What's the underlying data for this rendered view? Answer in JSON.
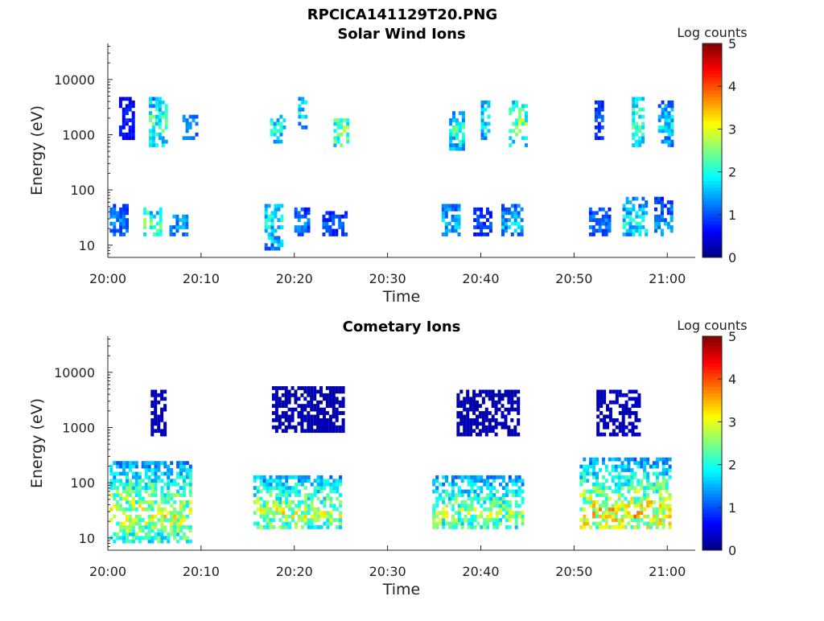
{
  "figure_title": "RPCICA141129T20.PNG",
  "chart_data": [
    {
      "type": "heatmap",
      "title": "Solar Wind Ions",
      "xlabel": "Time",
      "ylabel": "Energy (eV)",
      "x_tick_labels": [
        "20:00",
        "20:10",
        "20:20",
        "20:30",
        "20:40",
        "20:50",
        "21:00"
      ],
      "y_tick_labels": [
        "10",
        "100",
        "1000",
        "10000"
      ],
      "y_scale": "log",
      "ylim": [
        6,
        45000
      ],
      "xlim_minutes": [
        0,
        63
      ],
      "colorbar": {
        "label": "Log counts",
        "range": [
          0,
          5
        ],
        "tick_labels": [
          "0",
          "1",
          "2",
          "3",
          "4",
          "5"
        ],
        "colormap": "jet"
      },
      "clusters": [
        {
          "t_min": 0.2,
          "t_max": 2.2,
          "e_low": 15,
          "e_high": 55,
          "peak": 1.5
        },
        {
          "t_min": 1.2,
          "t_max": 2.6,
          "e_low": 800,
          "e_high": 4500,
          "peak": 0.9
        },
        {
          "t_min": 3.8,
          "t_max": 5.6,
          "e_low": 15,
          "e_high": 45,
          "peak": 2.6
        },
        {
          "t_min": 4.4,
          "t_max": 6.2,
          "e_low": 600,
          "e_high": 4500,
          "peak": 2.6
        },
        {
          "t_min": 6.6,
          "t_max": 8.6,
          "e_low": 15,
          "e_high": 35,
          "peak": 1.7
        },
        {
          "t_min": 8.0,
          "t_max": 9.4,
          "e_low": 800,
          "e_high": 2400,
          "peak": 1.6
        },
        {
          "t_min": 16.8,
          "t_max": 18.6,
          "e_low": 8,
          "e_high": 60,
          "peak": 2.2
        },
        {
          "t_min": 17.4,
          "t_max": 18.8,
          "e_low": 700,
          "e_high": 2200,
          "peak": 2.3
        },
        {
          "t_min": 20.0,
          "t_max": 21.6,
          "e_low": 15,
          "e_high": 45,
          "peak": 1.4
        },
        {
          "t_min": 20.4,
          "t_max": 21.4,
          "e_low": 1200,
          "e_high": 4500,
          "peak": 2.2
        },
        {
          "t_min": 23.0,
          "t_max": 25.4,
          "e_low": 15,
          "e_high": 40,
          "peak": 1.2
        },
        {
          "t_min": 24.2,
          "t_max": 25.6,
          "e_low": 600,
          "e_high": 2000,
          "peak": 3.0
        },
        {
          "t_min": 35.8,
          "t_max": 37.8,
          "e_low": 15,
          "e_high": 60,
          "peak": 1.8
        },
        {
          "t_min": 36.6,
          "t_max": 38.2,
          "e_low": 500,
          "e_high": 2500,
          "peak": 2.4
        },
        {
          "t_min": 39.2,
          "t_max": 41.2,
          "e_low": 15,
          "e_high": 45,
          "peak": 1.1
        },
        {
          "t_min": 40.0,
          "t_max": 41.0,
          "e_low": 800,
          "e_high": 4000,
          "peak": 2.1
        },
        {
          "t_min": 42.2,
          "t_max": 44.4,
          "e_low": 15,
          "e_high": 55,
          "peak": 1.8
        },
        {
          "t_min": 43.0,
          "t_max": 44.8,
          "e_low": 600,
          "e_high": 4000,
          "peak": 2.9
        },
        {
          "t_min": 51.6,
          "t_max": 53.8,
          "e_low": 15,
          "e_high": 45,
          "peak": 1.4
        },
        {
          "t_min": 52.2,
          "t_max": 53.2,
          "e_low": 800,
          "e_high": 4000,
          "peak": 1.2
        },
        {
          "t_min": 55.2,
          "t_max": 57.6,
          "e_low": 15,
          "e_high": 70,
          "peak": 2.2
        },
        {
          "t_min": 56.2,
          "t_max": 57.4,
          "e_low": 600,
          "e_high": 4500,
          "peak": 2.6
        },
        {
          "t_min": 58.6,
          "t_max": 60.6,
          "e_low": 15,
          "e_high": 70,
          "peak": 1.6
        },
        {
          "t_min": 59.0,
          "t_max": 60.4,
          "e_low": 600,
          "e_high": 4200,
          "peak": 2.0
        }
      ]
    },
    {
      "type": "heatmap",
      "title": "Cometary Ions",
      "xlabel": "Time",
      "ylabel": "Energy (eV)",
      "x_tick_labels": [
        "20:00",
        "20:10",
        "20:20",
        "20:30",
        "20:40",
        "20:50",
        "21:00"
      ],
      "y_tick_labels": [
        "10",
        "100",
        "1000",
        "10000"
      ],
      "y_scale": "log",
      "ylim": [
        6,
        45000
      ],
      "xlim_minutes": [
        0,
        63
      ],
      "colorbar": {
        "label": "Log counts",
        "range": [
          0,
          5
        ],
        "tick_labels": [
          "0",
          "1",
          "2",
          "3",
          "4",
          "5"
        ],
        "colormap": "jet"
      },
      "clusters": [
        {
          "t_min": 0.2,
          "t_max": 9.0,
          "e_low": 8,
          "e_high": 230,
          "peak": 3.3
        },
        {
          "t_min": 4.6,
          "t_max": 6.2,
          "e_low": 700,
          "e_high": 4500,
          "peak": 1.0
        },
        {
          "t_min": 15.6,
          "t_max": 24.8,
          "e_low": 15,
          "e_high": 130,
          "peak": 3.2
        },
        {
          "t_min": 17.6,
          "t_max": 25.2,
          "e_low": 800,
          "e_high": 5500,
          "peak": 0.8
        },
        {
          "t_min": 34.8,
          "t_max": 44.4,
          "e_low": 15,
          "e_high": 130,
          "peak": 3.0
        },
        {
          "t_min": 37.4,
          "t_max": 44.2,
          "e_low": 700,
          "e_high": 4500,
          "peak": 0.8
        },
        {
          "t_min": 50.6,
          "t_max": 60.4,
          "e_low": 15,
          "e_high": 300,
          "peak": 3.7
        },
        {
          "t_min": 52.4,
          "t_max": 57.0,
          "e_low": 700,
          "e_high": 4500,
          "peak": 1.0
        }
      ]
    }
  ]
}
